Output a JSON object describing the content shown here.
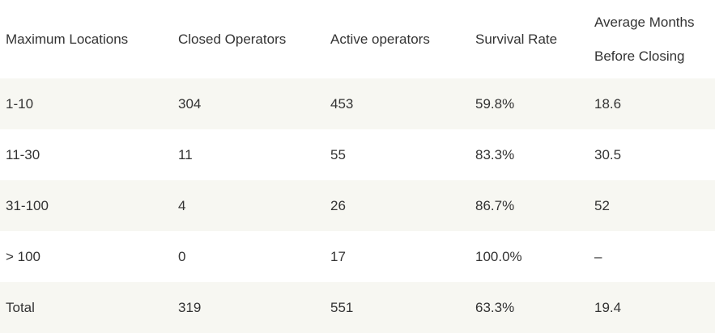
{
  "table": {
    "headers": [
      "Maximum Locations",
      "Closed Operators",
      "Active operators",
      "Survival Rate",
      "Average Months Before Closing"
    ],
    "rows": [
      [
        "1-10",
        "304",
        "453",
        "59.8%",
        "18.6"
      ],
      [
        "11-30",
        "11",
        "55",
        "83.3%",
        "30.5"
      ],
      [
        "31-100",
        "4",
        "26",
        "86.7%",
        "52"
      ],
      [
        "> 100",
        "0",
        "17",
        "100.0%",
        "–"
      ],
      [
        "Total",
        "319",
        "551",
        "63.3%",
        "19.4"
      ]
    ],
    "row_background_alt": "#f7f7f2",
    "text_color": "#333333"
  }
}
